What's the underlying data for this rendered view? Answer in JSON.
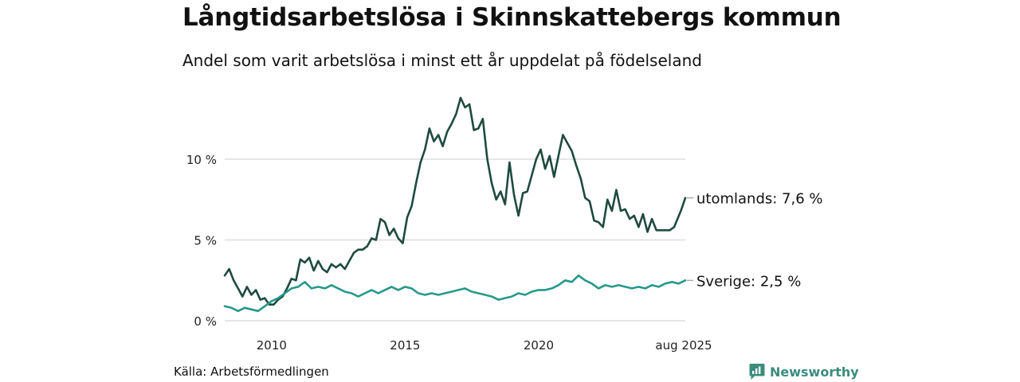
{
  "title": "Långtidsarbetslösa i Skinnskattebergs kommun",
  "subtitle": "Andel som varit arbetslösa i minst ett år uppdelat på födelseland",
  "source": "Källa: Arbetsförmedlingen",
  "brand": "Newsworthy",
  "colors": {
    "utomlands": "#1f4a40",
    "sverige": "#26998a",
    "grid": "#dddddd",
    "brand": "#3b8c7c"
  },
  "chart_data": {
    "type": "line",
    "x_start": "2008-05",
    "x_end": "2025-08",
    "x_ticks": [
      "2010",
      "2015",
      "2020",
      "aug 2025"
    ],
    "y_ticks": [
      "0 %",
      "5 %",
      "10 %"
    ],
    "ylim": [
      0,
      14
    ],
    "grid": true,
    "series": [
      {
        "name": "utomlands",
        "end_label": "utomlands: 7,6 %",
        "points": [
          [
            "2008-05",
            2.8
          ],
          [
            "2008-07",
            3.2
          ],
          [
            "2008-09",
            2.5
          ],
          [
            "2008-11",
            2.0
          ],
          [
            "2009-01",
            1.5
          ],
          [
            "2009-03",
            2.1
          ],
          [
            "2009-05",
            1.6
          ],
          [
            "2009-07",
            1.9
          ],
          [
            "2009-09",
            1.3
          ],
          [
            "2009-11",
            1.4
          ],
          [
            "2010-01",
            1.0
          ],
          [
            "2010-03",
            1.0
          ],
          [
            "2010-05",
            1.3
          ],
          [
            "2010-07",
            1.5
          ],
          [
            "2010-09",
            2.0
          ],
          [
            "2010-11",
            2.6
          ],
          [
            "2011-01",
            2.5
          ],
          [
            "2011-03",
            3.8
          ],
          [
            "2011-05",
            3.6
          ],
          [
            "2011-07",
            3.9
          ],
          [
            "2011-09",
            3.1
          ],
          [
            "2011-11",
            3.7
          ],
          [
            "2012-01",
            3.2
          ],
          [
            "2012-03",
            3.0
          ],
          [
            "2012-05",
            3.5
          ],
          [
            "2012-07",
            3.3
          ],
          [
            "2012-09",
            3.5
          ],
          [
            "2012-11",
            3.2
          ],
          [
            "2013-01",
            3.7
          ],
          [
            "2013-03",
            4.2
          ],
          [
            "2013-05",
            4.4
          ],
          [
            "2013-07",
            4.4
          ],
          [
            "2013-09",
            4.6
          ],
          [
            "2013-11",
            5.1
          ],
          [
            "2014-01",
            5.0
          ],
          [
            "2014-03",
            6.3
          ],
          [
            "2014-05",
            6.1
          ],
          [
            "2014-07",
            5.3
          ],
          [
            "2014-09",
            5.7
          ],
          [
            "2014-11",
            5.1
          ],
          [
            "2015-01",
            4.8
          ],
          [
            "2015-03",
            6.4
          ],
          [
            "2015-05",
            7.1
          ],
          [
            "2015-07",
            8.5
          ],
          [
            "2015-09",
            9.8
          ],
          [
            "2015-11",
            10.6
          ],
          [
            "2016-01",
            11.9
          ],
          [
            "2016-03",
            11.1
          ],
          [
            "2016-05",
            11.5
          ],
          [
            "2016-07",
            10.8
          ],
          [
            "2016-09",
            11.7
          ],
          [
            "2016-11",
            12.2
          ],
          [
            "2017-01",
            12.8
          ],
          [
            "2017-03",
            13.8
          ],
          [
            "2017-05",
            13.2
          ],
          [
            "2017-07",
            13.4
          ],
          [
            "2017-09",
            11.8
          ],
          [
            "2017-11",
            11.9
          ],
          [
            "2018-01",
            12.5
          ],
          [
            "2018-03",
            10.0
          ],
          [
            "2018-05",
            8.5
          ],
          [
            "2018-07",
            7.5
          ],
          [
            "2018-09",
            8.0
          ],
          [
            "2018-11",
            7.2
          ],
          [
            "2019-01",
            9.8
          ],
          [
            "2019-03",
            7.8
          ],
          [
            "2019-05",
            6.5
          ],
          [
            "2019-07",
            7.9
          ],
          [
            "2019-09",
            8.0
          ],
          [
            "2019-11",
            9.0
          ],
          [
            "2020-01",
            10.0
          ],
          [
            "2020-03",
            10.6
          ],
          [
            "2020-05",
            9.4
          ],
          [
            "2020-07",
            10.2
          ],
          [
            "2020-09",
            8.9
          ],
          [
            "2020-11",
            10.2
          ],
          [
            "2021-01",
            11.5
          ],
          [
            "2021-03",
            11.0
          ],
          [
            "2021-05",
            10.5
          ],
          [
            "2021-07",
            9.6
          ],
          [
            "2021-09",
            8.8
          ],
          [
            "2021-11",
            7.6
          ],
          [
            "2022-01",
            7.4
          ],
          [
            "2022-03",
            6.2
          ],
          [
            "2022-05",
            6.1
          ],
          [
            "2022-07",
            5.8
          ],
          [
            "2022-09",
            7.5
          ],
          [
            "2022-11",
            6.8
          ],
          [
            "2023-01",
            8.1
          ],
          [
            "2023-03",
            6.8
          ],
          [
            "2023-05",
            6.9
          ],
          [
            "2023-07",
            6.3
          ],
          [
            "2023-09",
            6.5
          ],
          [
            "2023-11",
            5.8
          ],
          [
            "2024-01",
            6.6
          ],
          [
            "2024-03",
            5.5
          ],
          [
            "2024-05",
            6.3
          ],
          [
            "2024-07",
            5.6
          ],
          [
            "2024-09",
            5.6
          ],
          [
            "2024-11",
            5.6
          ],
          [
            "2025-01",
            5.6
          ],
          [
            "2025-03",
            5.8
          ],
          [
            "2025-06",
            6.8
          ],
          [
            "2025-08",
            7.6
          ]
        ]
      },
      {
        "name": "Sverige",
        "end_label": "Sverige: 2,5 %",
        "points": [
          [
            "2008-05",
            0.9
          ],
          [
            "2008-08",
            0.8
          ],
          [
            "2008-11",
            0.6
          ],
          [
            "2009-02",
            0.8
          ],
          [
            "2009-05",
            0.7
          ],
          [
            "2009-08",
            0.6
          ],
          [
            "2009-11",
            0.9
          ],
          [
            "2010-02",
            1.2
          ],
          [
            "2010-05",
            1.4
          ],
          [
            "2010-08",
            1.7
          ],
          [
            "2010-11",
            2.0
          ],
          [
            "2011-02",
            2.1
          ],
          [
            "2011-05",
            2.4
          ],
          [
            "2011-08",
            2.0
          ],
          [
            "2011-11",
            2.1
          ],
          [
            "2012-02",
            2.0
          ],
          [
            "2012-05",
            2.2
          ],
          [
            "2012-08",
            2.0
          ],
          [
            "2012-11",
            1.8
          ],
          [
            "2013-02",
            1.7
          ],
          [
            "2013-05",
            1.5
          ],
          [
            "2013-08",
            1.7
          ],
          [
            "2013-11",
            1.9
          ],
          [
            "2014-02",
            1.7
          ],
          [
            "2014-05",
            1.9
          ],
          [
            "2014-08",
            2.1
          ],
          [
            "2014-11",
            1.9
          ],
          [
            "2015-02",
            2.1
          ],
          [
            "2015-05",
            2.0
          ],
          [
            "2015-08",
            1.7
          ],
          [
            "2015-11",
            1.6
          ],
          [
            "2016-02",
            1.7
          ],
          [
            "2016-05",
            1.6
          ],
          [
            "2016-08",
            1.7
          ],
          [
            "2016-11",
            1.8
          ],
          [
            "2017-02",
            1.9
          ],
          [
            "2017-05",
            2.0
          ],
          [
            "2017-08",
            1.8
          ],
          [
            "2017-11",
            1.7
          ],
          [
            "2018-02",
            1.6
          ],
          [
            "2018-05",
            1.5
          ],
          [
            "2018-08",
            1.3
          ],
          [
            "2018-11",
            1.4
          ],
          [
            "2019-02",
            1.5
          ],
          [
            "2019-05",
            1.7
          ],
          [
            "2019-08",
            1.6
          ],
          [
            "2019-11",
            1.8
          ],
          [
            "2020-02",
            1.9
          ],
          [
            "2020-05",
            1.9
          ],
          [
            "2020-08",
            2.0
          ],
          [
            "2020-11",
            2.2
          ],
          [
            "2021-02",
            2.5
          ],
          [
            "2021-05",
            2.4
          ],
          [
            "2021-08",
            2.8
          ],
          [
            "2021-11",
            2.5
          ],
          [
            "2022-02",
            2.3
          ],
          [
            "2022-05",
            2.0
          ],
          [
            "2022-08",
            2.2
          ],
          [
            "2022-11",
            2.1
          ],
          [
            "2023-02",
            2.2
          ],
          [
            "2023-05",
            2.1
          ],
          [
            "2023-08",
            2.0
          ],
          [
            "2023-11",
            2.1
          ],
          [
            "2024-02",
            2.0
          ],
          [
            "2024-05",
            2.2
          ],
          [
            "2024-08",
            2.1
          ],
          [
            "2024-11",
            2.3
          ],
          [
            "2025-02",
            2.4
          ],
          [
            "2025-05",
            2.3
          ],
          [
            "2025-08",
            2.5
          ]
        ]
      }
    ]
  }
}
